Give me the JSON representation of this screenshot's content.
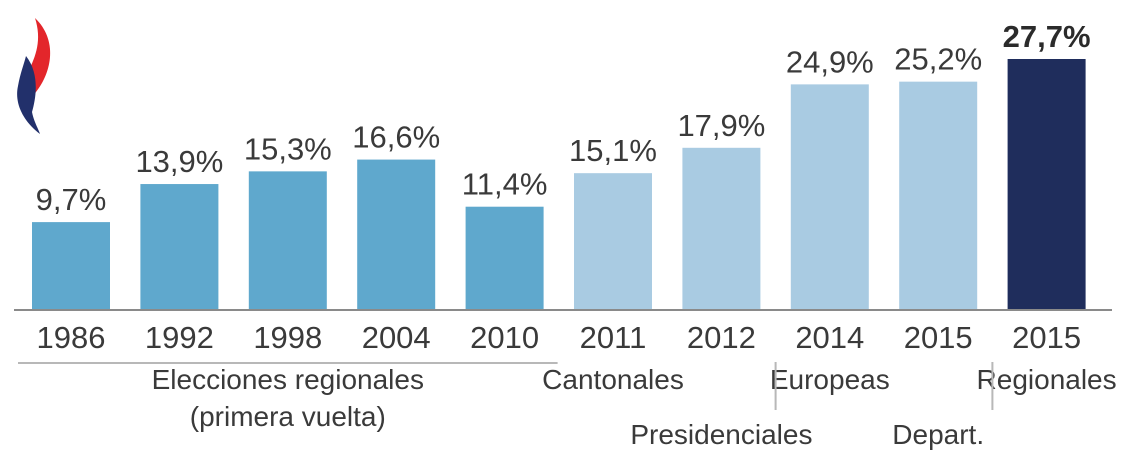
{
  "colors": {
    "regional": "#5fa8cd",
    "other": "#a9cbe2",
    "highlight": "#1f2d5c",
    "axis": "#8a8a8a",
    "separator": "#b8b8b8",
    "logo_red": "#e3262b",
    "logo_blue": "#22306b"
  },
  "logo_icon": "flame-icon",
  "chart_data": {
    "type": "bar",
    "categories": [
      "1986",
      "1992",
      "1998",
      "2004",
      "2010",
      "2011",
      "2012",
      "2014",
      "2015",
      "2015"
    ],
    "values": [
      9.7,
      13.9,
      15.3,
      16.6,
      11.4,
      15.1,
      17.9,
      24.9,
      25.2,
      27.7
    ],
    "value_labels": [
      "9,7%",
      "13,9%",
      "15,3%",
      "16,6%",
      "11,4%",
      "15,1%",
      "17,9%",
      "24,9%",
      "25,2%",
      "27,7%"
    ],
    "bar_groups": [
      "regional",
      "regional",
      "regional",
      "regional",
      "regional",
      "other",
      "other",
      "other",
      "other",
      "highlight"
    ],
    "ylim": [
      0,
      27.7
    ],
    "grid": false,
    "election_groups": [
      {
        "label_lines": [
          "Elecciones regionales",
          "(primera vuelta)"
        ],
        "bars": [
          0,
          4
        ],
        "underline": true,
        "row": 1
      },
      {
        "label_lines": [
          "Cantonales"
        ],
        "bars": [
          5,
          5
        ],
        "underline": false,
        "row": 1
      },
      {
        "label_lines": [
          "Presidenciales"
        ],
        "bars": [
          6,
          6
        ],
        "underline": false,
        "row": 2
      },
      {
        "label_lines": [
          "Europeas"
        ],
        "bars": [
          7,
          7
        ],
        "underline": false,
        "row": 1
      },
      {
        "label_lines": [
          "Depart."
        ],
        "bars": [
          8,
          8
        ],
        "underline": false,
        "row": 2
      },
      {
        "label_lines": [
          "Regionales"
        ],
        "bars": [
          9,
          9
        ],
        "underline": false,
        "row": 1
      }
    ]
  }
}
